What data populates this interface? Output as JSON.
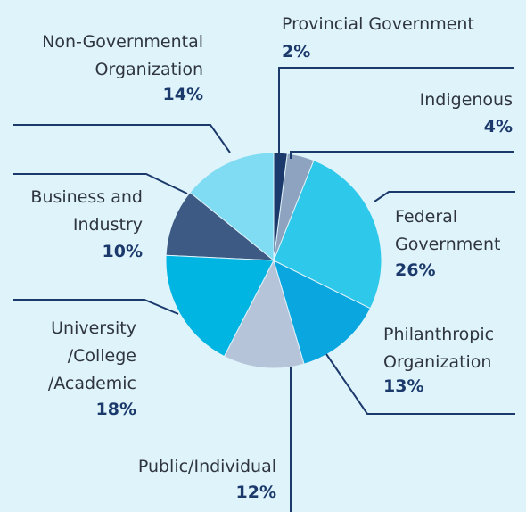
{
  "chart_data": {
    "type": "pie",
    "categories": [
      "Provincial Government",
      "Indigenous",
      "Federal\nGovernment",
      "Philanthropic\nOrganization",
      "Public/Individual",
      "University\n/College\n/Academic",
      "Business and\nIndustry",
      "Non-Governmental\nOrganization"
    ],
    "values": [
      2,
      4,
      26,
      13,
      12,
      18,
      10,
      14
    ],
    "value_labels": [
      "2%",
      "4%",
      "26%",
      "13%",
      "12%",
      "18%",
      "10%",
      "14%"
    ],
    "colors": [
      "#1b3a6b",
      "#8ea3bf",
      "#2ec8ea",
      "#0aa6e0",
      "#b5c4d8",
      "#00b5e2",
      "#3d5a85",
      "#7fdcf2"
    ]
  }
}
